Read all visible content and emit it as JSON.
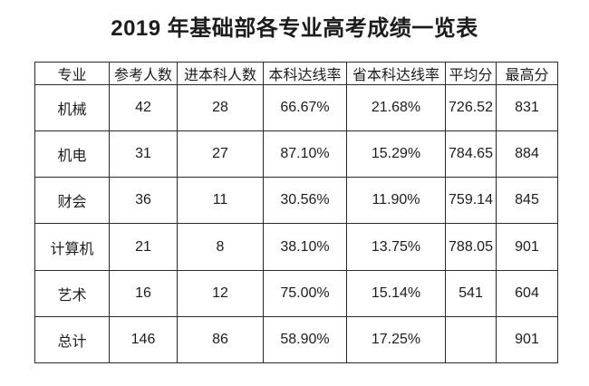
{
  "document": {
    "title": "2019 年基础部各专业高考成绩一览表"
  },
  "table": {
    "columns": [
      "专业",
      "参考人数",
      "进本科人数",
      "本科达线率",
      "省本科达线率",
      "平均分",
      "最高分"
    ],
    "rows": [
      [
        "机械",
        "42",
        "28",
        "66.67%",
        "21.68%",
        "726.52",
        "831"
      ],
      [
        "机电",
        "31",
        "27",
        "87.10%",
        "15.29%",
        "784.65",
        "884"
      ],
      [
        "财会",
        "36",
        "11",
        "30.56%",
        "11.90%",
        "759.14",
        "845"
      ],
      [
        "计算机",
        "21",
        "8",
        "38.10%",
        "13.75%",
        "788.05",
        "901"
      ],
      [
        "艺术",
        "16",
        "12",
        "75.00%",
        "15.14%",
        "541",
        "604"
      ],
      [
        "总计",
        "146",
        "86",
        "58.90%",
        "17.25%",
        "",
        "901"
      ]
    ]
  },
  "colors": {
    "background": "#ffffff",
    "text": "#1c1c1c",
    "border": "#2a2a2a"
  }
}
